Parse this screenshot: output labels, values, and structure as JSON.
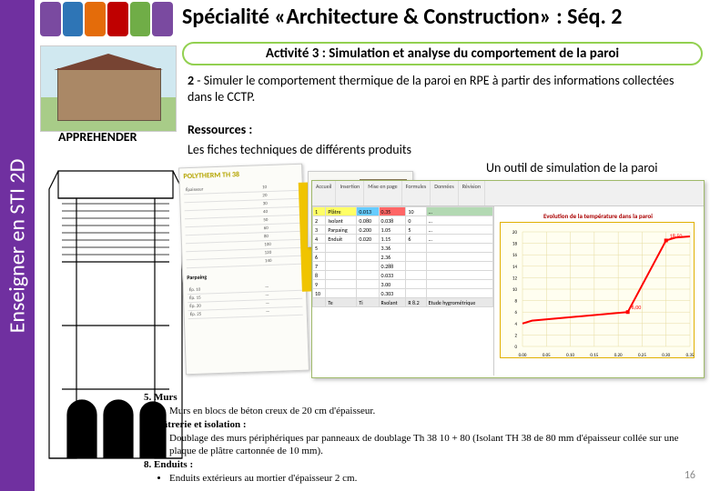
{
  "vertical_label": "Enseigner en STI 2D",
  "seq_steps": {
    "colors": [
      "#7a4aa0",
      "#2e75b6",
      "#e46c0a",
      "#bf0000",
      "#70ad47",
      "#7a4aa0"
    ]
  },
  "title": "Spécialité «Architecture & Construction» : Séq. 2",
  "activity_banner": "Activité 3 : Simulation et analyse du comportement de la paroi",
  "banner_border_color": "#92d050",
  "task2_num": "2",
  "task2_text": " - Simuler le comportement thermique de la paroi en RPE à partir des informations collectées dans le CCTP.",
  "apprehender": "APPREHENDER",
  "ressources_label": "Ressources :",
  "fiches_label": "Les fiches techniques de différents produits",
  "outil_label": "Un outil de simulation de la paroi",
  "fiche": {
    "brand": "POLYTHERM TH 38",
    "rows": [
      [
        "Épaisseur",
        "10"
      ],
      [
        "",
        "20"
      ],
      [
        "",
        "30"
      ],
      [
        "",
        "40"
      ],
      [
        "",
        "50"
      ],
      [
        "",
        "60"
      ],
      [
        "",
        "80"
      ],
      [
        "",
        "100"
      ],
      [
        "",
        "120"
      ],
      [
        "",
        "140"
      ]
    ],
    "section2": "Parpaing",
    "rows2": [
      [
        "Ép. 10",
        "—"
      ],
      [
        "Ép. 15",
        "—"
      ],
      [
        "Ép. 20",
        "—"
      ],
      [
        "Ép. 25",
        "—"
      ]
    ]
  },
  "sim": {
    "ribbon_tabs": [
      "Accueil",
      "Insertion",
      "Mise en page",
      "Formules",
      "Données",
      "Révision"
    ],
    "grid": {
      "header_bg": [
        "#ffff66",
        "#ffff66",
        "#66ccff",
        "#ff6666",
        "#ffffff",
        "#b3d9b3"
      ],
      "rows": [
        [
          "1",
          "Plâtre",
          "0.013",
          "0.35",
          "10",
          "…"
        ],
        [
          "2",
          "Isolant",
          "0.080",
          "0.038",
          "0",
          "…"
        ],
        [
          "3",
          "Parpaing",
          "0.200",
          "1.05",
          "5",
          "…"
        ],
        [
          "4",
          "Enduit",
          "0.020",
          "1.15",
          "6",
          "…"
        ],
        [
          "5",
          "",
          "",
          "3.36",
          "",
          ""
        ],
        [
          "6",
          "",
          "",
          "2.36",
          "",
          ""
        ],
        [
          "7",
          "",
          "",
          "0.288",
          "",
          ""
        ],
        [
          "8",
          "",
          "",
          "0.033",
          "",
          ""
        ],
        [
          "9",
          "",
          "",
          "3.00",
          "",
          ""
        ],
        [
          "10",
          "",
          "",
          "0.303",
          "",
          ""
        ],
        [
          "",
          "Te",
          "Ti",
          "Rsolant",
          "R 8.2",
          "Etude hygrométrique"
        ]
      ]
    },
    "chart": {
      "title": "Evolution de la température dans la paroi",
      "border_color": "#e0b000",
      "bg_color": "#fffef0",
      "xlim": [
        0,
        0.35
      ],
      "ylim": [
        0,
        20
      ],
      "xticks": [
        0,
        0.05,
        0.1,
        0.15,
        0.2,
        0.25,
        0.3,
        0.35
      ],
      "yticks": [
        0,
        2,
        4,
        6,
        8,
        10,
        12,
        14,
        16,
        18,
        20
      ],
      "grid_color": "#e6dca0",
      "line_color": "#ff0000",
      "line_width": 2,
      "points_x": [
        0.0,
        0.02,
        0.22,
        0.3,
        0.32,
        0.35
      ],
      "points_y": [
        4.0,
        4.5,
        6.0,
        18.5,
        19.0,
        19.2
      ],
      "markers": [
        {
          "x": 0.22,
          "y": 6.0,
          "label": "6,00"
        },
        {
          "x": 0.3,
          "y": 18.5,
          "label": "18,50"
        }
      ]
    }
  },
  "cctp": {
    "items": [
      {
        "num": "5.",
        "title": "Murs",
        "bullets": [
          "Murs en blocs de béton creux de 20 cm d'épaisseur."
        ]
      },
      {
        "num": "6.",
        "title": "Plâtrerie et isolation :",
        "bullets": [
          "Doublage des murs périphériques par panneaux de doublage Th 38 10 + 80 (Isolant TH 38 de 80 mm d'épaisseur collée sur une plaque de plâtre cartonnée de 10 mm)."
        ]
      },
      {
        "num": "8.",
        "title": "Enduits :",
        "bullets": [
          "Enduits extérieurs au mortier d'épaisseur 2 cm."
        ]
      }
    ]
  },
  "page_number": "16"
}
